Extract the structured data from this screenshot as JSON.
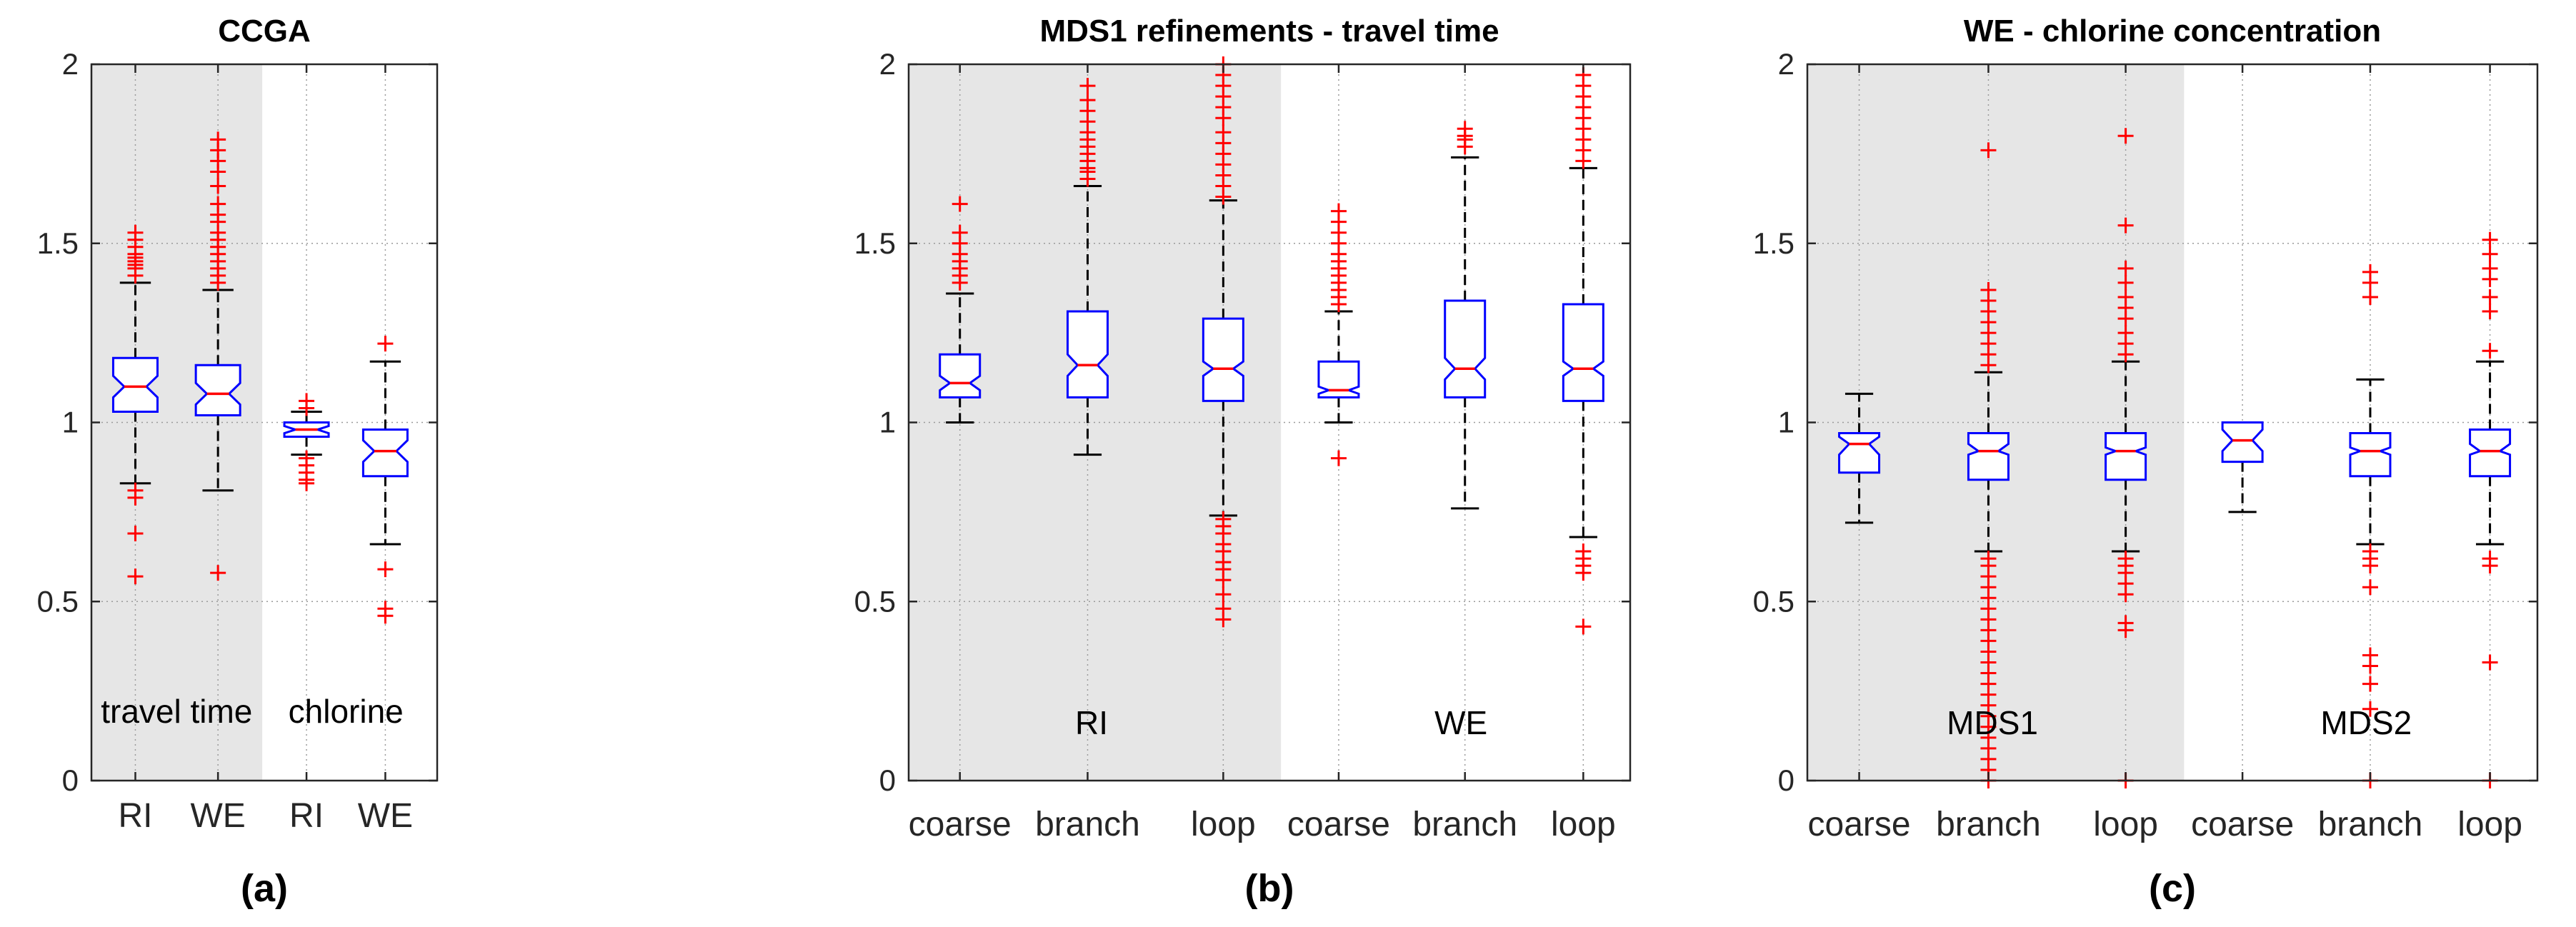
{
  "chart_data": [
    {
      "type": "box",
      "title": "CCGA",
      "caption": "(a)",
      "ylim": [
        0,
        2
      ],
      "yticks": [
        0,
        0.5,
        1,
        1.5,
        2
      ],
      "ytick_labels": [
        "0",
        "0.5",
        "1",
        "1.5",
        "2"
      ],
      "grid": true,
      "group_labels": [
        "travel time",
        "chlorine"
      ],
      "shaded_group": 0,
      "categories": [
        "RI",
        "WE",
        "RI",
        "WE"
      ],
      "boxes": [
        {
          "label": "RI",
          "group": 0,
          "median": 1.1,
          "q1": 1.03,
          "q3": 1.18,
          "notch_low": 1.07,
          "notch_high": 1.13,
          "whisker_low": 0.83,
          "whisker_high": 1.39,
          "outliers": [
            0.57,
            0.69,
            0.79,
            0.81,
            1.41,
            1.43,
            1.44,
            1.45,
            1.46,
            1.47,
            1.49,
            1.51,
            1.53
          ]
        },
        {
          "label": "WE",
          "group": 0,
          "median": 1.08,
          "q1": 1.02,
          "q3": 1.16,
          "notch_low": 1.05,
          "notch_high": 1.11,
          "whisker_low": 0.81,
          "whisker_high": 1.37,
          "outliers": [
            0.58,
            1.39,
            1.41,
            1.43,
            1.45,
            1.47,
            1.49,
            1.51,
            1.53,
            1.56,
            1.58,
            1.61,
            1.66,
            1.7,
            1.73,
            1.76,
            1.79
          ]
        },
        {
          "label": "RI",
          "group": 1,
          "median": 0.98,
          "q1": 0.96,
          "q3": 1.0,
          "notch_low": 0.97,
          "notch_high": 0.99,
          "whisker_low": 0.91,
          "whisker_high": 1.03,
          "outliers": [
            0.83,
            0.84,
            0.86,
            0.88,
            0.9,
            1.04,
            1.06
          ]
        },
        {
          "label": "WE",
          "group": 1,
          "median": 0.92,
          "q1": 0.85,
          "q3": 0.98,
          "notch_low": 0.89,
          "notch_high": 0.95,
          "whisker_low": 0.66,
          "whisker_high": 1.17,
          "outliers": [
            0.46,
            0.48,
            0.59,
            1.22
          ]
        }
      ]
    },
    {
      "type": "box",
      "title": "MDS1 refinements - travel time",
      "caption": "(b)",
      "ylim": [
        0,
        2
      ],
      "yticks": [
        0,
        0.5,
        1,
        1.5,
        2
      ],
      "ytick_labels": [
        "0",
        "0.5",
        "1",
        "1.5",
        "2"
      ],
      "grid": true,
      "group_labels": [
        "RI",
        "WE"
      ],
      "shaded_group": 0,
      "categories": [
        "coarse",
        "branch",
        "loop",
        "coarse",
        "branch",
        "loop"
      ],
      "boxes": [
        {
          "label": "coarse",
          "group": 0,
          "median": 1.11,
          "q1": 1.07,
          "q3": 1.19,
          "notch_low": 1.09,
          "notch_high": 1.13,
          "whisker_low": 1.0,
          "whisker_high": 1.36,
          "outliers": [
            1.39,
            1.41,
            1.43,
            1.45,
            1.47,
            1.5,
            1.53,
            1.61
          ]
        },
        {
          "label": "branch",
          "group": 0,
          "median": 1.16,
          "q1": 1.07,
          "q3": 1.31,
          "notch_low": 1.13,
          "notch_high": 1.19,
          "whisker_low": 0.91,
          "whisker_high": 1.66,
          "outliers": [
            1.68,
            1.7,
            1.71,
            1.73,
            1.75,
            1.77,
            1.79,
            1.81,
            1.84,
            1.87,
            1.9,
            1.94
          ]
        },
        {
          "label": "loop",
          "group": 0,
          "median": 1.15,
          "q1": 1.06,
          "q3": 1.29,
          "notch_low": 1.13,
          "notch_high": 1.17,
          "whisker_low": 0.74,
          "whisker_high": 1.62,
          "outliers": [
            0.45,
            0.48,
            0.52,
            0.56,
            0.59,
            0.61,
            0.64,
            0.66,
            0.69,
            0.71,
            0.73,
            1.63,
            1.66,
            1.69,
            1.72,
            1.75,
            1.78,
            1.81,
            1.85,
            1.88,
            1.91,
            1.94,
            1.97,
            2.0
          ]
        },
        {
          "label": "coarse",
          "group": 1,
          "median": 1.09,
          "q1": 1.07,
          "q3": 1.17,
          "notch_low": 1.08,
          "notch_high": 1.1,
          "whisker_low": 1.0,
          "whisker_high": 1.31,
          "outliers": [
            0.9,
            1.33,
            1.35,
            1.37,
            1.39,
            1.41,
            1.43,
            1.45,
            1.47,
            1.5,
            1.53,
            1.56,
            1.59
          ]
        },
        {
          "label": "branch",
          "group": 1,
          "median": 1.15,
          "q1": 1.07,
          "q3": 1.34,
          "notch_low": 1.12,
          "notch_high": 1.18,
          "whisker_low": 0.76,
          "whisker_high": 1.74,
          "outliers": [
            1.77,
            1.79,
            1.8,
            1.82
          ]
        },
        {
          "label": "loop",
          "group": 1,
          "median": 1.15,
          "q1": 1.06,
          "q3": 1.33,
          "notch_low": 1.13,
          "notch_high": 1.17,
          "whisker_low": 0.68,
          "whisker_high": 1.71,
          "outliers": [
            0.43,
            0.58,
            0.6,
            0.62,
            0.64,
            1.73,
            1.76,
            1.79,
            1.82,
            1.85,
            1.88,
            1.91,
            1.94,
            1.97
          ]
        }
      ]
    },
    {
      "type": "box",
      "title": "WE - chlorine concentration",
      "caption": "(c)",
      "ylim": [
        0,
        2
      ],
      "yticks": [
        0,
        0.5,
        1,
        1.5,
        2
      ],
      "ytick_labels": [
        "0",
        "0.5",
        "1",
        "1.5",
        "2"
      ],
      "grid": true,
      "group_labels": [
        "MDS1",
        "MDS2"
      ],
      "shaded_group": 0,
      "categories": [
        "coarse",
        "branch",
        "loop",
        "coarse",
        "branch",
        "loop"
      ],
      "boxes": [
        {
          "label": "coarse",
          "group": 0,
          "median": 0.94,
          "q1": 0.86,
          "q3": 0.97,
          "notch_low": 0.91,
          "notch_high": 0.96,
          "whisker_low": 0.72,
          "whisker_high": 1.08,
          "outliers": []
        },
        {
          "label": "branch",
          "group": 0,
          "median": 0.92,
          "q1": 0.84,
          "q3": 0.97,
          "notch_low": 0.91,
          "notch_high": 0.94,
          "whisker_low": 0.64,
          "whisker_high": 1.14,
          "outliers": [
            0.0,
            0.03,
            0.06,
            0.09,
            0.12,
            0.15,
            0.18,
            0.21,
            0.24,
            0.27,
            0.3,
            0.33,
            0.36,
            0.39,
            0.42,
            0.45,
            0.48,
            0.51,
            0.54,
            0.57,
            0.6,
            0.62,
            1.16,
            1.19,
            1.22,
            1.25,
            1.28,
            1.31,
            1.34,
            1.37,
            1.76
          ]
        },
        {
          "label": "loop",
          "group": 0,
          "median": 0.92,
          "q1": 0.84,
          "q3": 0.97,
          "notch_low": 0.91,
          "notch_high": 0.93,
          "whisker_low": 0.64,
          "whisker_high": 1.17,
          "outliers": [
            0.0,
            0.42,
            0.44,
            0.52,
            0.55,
            0.58,
            0.6,
            0.62,
            1.19,
            1.22,
            1.25,
            1.29,
            1.32,
            1.35,
            1.39,
            1.43,
            1.55,
            1.8
          ]
        },
        {
          "label": "coarse",
          "group": 1,
          "median": 0.95,
          "q1": 0.89,
          "q3": 1.0,
          "notch_low": 0.92,
          "notch_high": 0.98,
          "whisker_low": 0.75,
          "whisker_high": 1.0,
          "outliers": []
        },
        {
          "label": "branch",
          "group": 1,
          "median": 0.92,
          "q1": 0.85,
          "q3": 0.97,
          "notch_low": 0.91,
          "notch_high": 0.93,
          "whisker_low": 0.66,
          "whisker_high": 1.12,
          "outliers": [
            0.0,
            0.2,
            0.27,
            0.32,
            0.35,
            0.54,
            0.6,
            0.62,
            0.64,
            1.35,
            1.39,
            1.42
          ]
        },
        {
          "label": "loop",
          "group": 1,
          "median": 0.92,
          "q1": 0.85,
          "q3": 0.98,
          "notch_low": 0.91,
          "notch_high": 0.94,
          "whisker_low": 0.66,
          "whisker_high": 1.17,
          "outliers": [
            0.0,
            0.33,
            0.6,
            0.62,
            1.2,
            1.31,
            1.35,
            1.4,
            1.43,
            1.47,
            1.51
          ]
        }
      ]
    }
  ],
  "colors": {
    "box": "#0000ff",
    "median": "#ff0000",
    "outlier": "#ff0000",
    "whisker": "#000000",
    "shade": "#e6e6e6",
    "grid": "#9a9a9a",
    "text": "#262626",
    "axis": "#262626"
  }
}
